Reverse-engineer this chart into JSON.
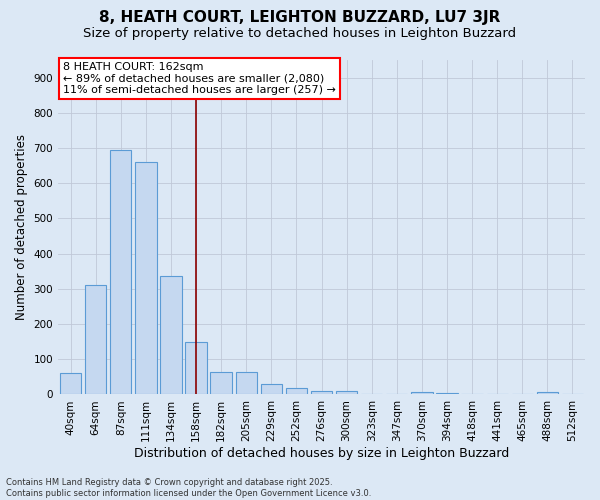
{
  "title": "8, HEATH COURT, LEIGHTON BUZZARD, LU7 3JR",
  "subtitle": "Size of property relative to detached houses in Leighton Buzzard",
  "xlabel": "Distribution of detached houses by size in Leighton Buzzard",
  "ylabel": "Number of detached properties",
  "categories": [
    "40sqm",
    "64sqm",
    "87sqm",
    "111sqm",
    "134sqm",
    "158sqm",
    "182sqm",
    "205sqm",
    "229sqm",
    "252sqm",
    "276sqm",
    "300sqm",
    "323sqm",
    "347sqm",
    "370sqm",
    "394sqm",
    "418sqm",
    "441sqm",
    "465sqm",
    "488sqm",
    "512sqm"
  ],
  "values": [
    60,
    312,
    693,
    659,
    336,
    150,
    65,
    65,
    30,
    18,
    11,
    11,
    0,
    0,
    8,
    5,
    0,
    0,
    0,
    7,
    0
  ],
  "bar_color": "#c5d8f0",
  "bar_edge_color": "#5b9bd5",
  "vline_x": 5,
  "vline_color": "#8b0000",
  "annotation_line1": "8 HEATH COURT: 162sqm",
  "annotation_line2": "← 89% of detached houses are smaller (2,080)",
  "annotation_line3": "11% of semi-detached houses are larger (257) →",
  "annotation_box_color": "red",
  "annotation_bg_color": "white",
  "ylim": [
    0,
    950
  ],
  "yticks": [
    0,
    100,
    200,
    300,
    400,
    500,
    600,
    700,
    800,
    900
  ],
  "grid_color": "#c0c8d8",
  "bg_color": "#dce8f5",
  "footnote": "Contains HM Land Registry data © Crown copyright and database right 2025.\nContains public sector information licensed under the Open Government Licence v3.0.",
  "title_fontsize": 11,
  "subtitle_fontsize": 9.5,
  "xlabel_fontsize": 9,
  "ylabel_fontsize": 8.5,
  "tick_fontsize": 7.5,
  "annotation_fontsize": 8,
  "footnote_fontsize": 6
}
